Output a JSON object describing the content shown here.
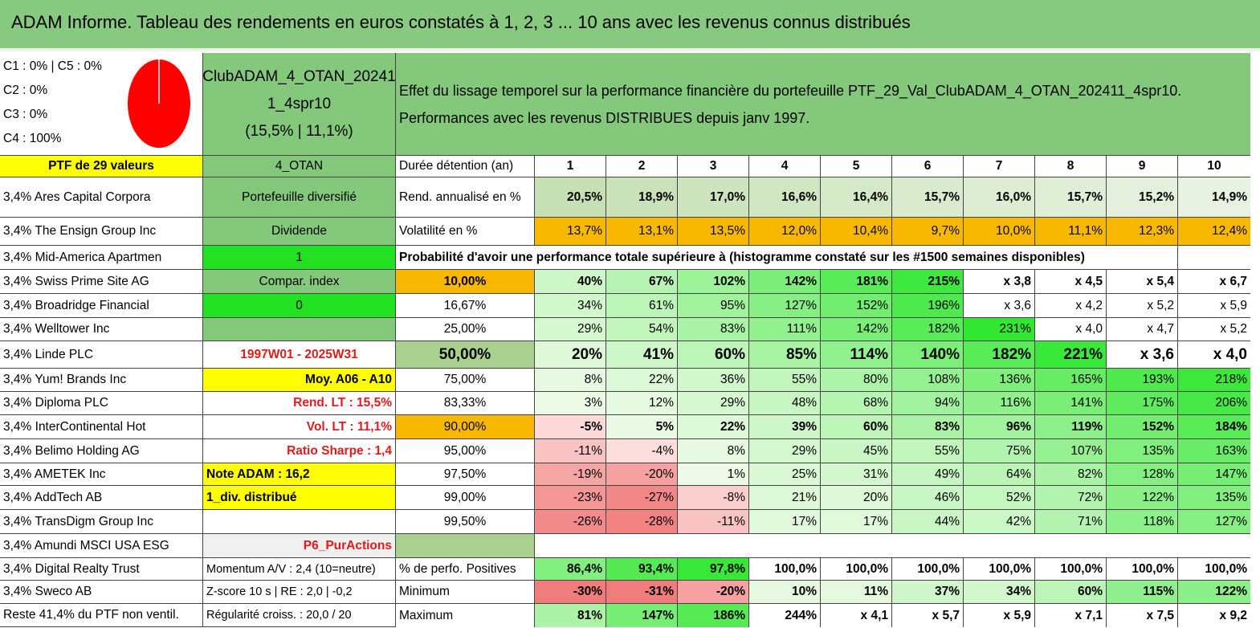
{
  "title": "ADAM Informe. Tableau des rendements en euros constatés à 1, 2, 3 ... 10 ans avec les revenus connus distribués",
  "legend": [
    "C1 : 0% | C5 : 0%",
    "C2 : 0%",
    "C3 : 0%",
    "C4 : 100%"
  ],
  "colors": {
    "header_green": "#86c97f",
    "pie_red": "#ff0000",
    "yellow": "#ffff00",
    "orange": "#f9b800",
    "lime": "#22e022",
    "label_red": "#e01b1b"
  },
  "portfolio": {
    "line1": "ClubADAM_4_OTAN_20241",
    "line2": "1_4spr10",
    "line3": "(15,5% | 11,1%)"
  },
  "effect": {
    "line1": "Effet du lissage temporel sur la performance financière du portefeuille PTF_29_Val_ClubADAM_4_OTAN_202411_4spr10.",
    "line2": "Performances avec les revenus DISTRIBUES depuis janv 1997."
  },
  "holdings_header": "PTF de 29 valeurs",
  "holdings": [
    "3,4% Ares Capital Corpora",
    "3,4% The Ensign Group Inc",
    "3,4% Mid-America Apartmen",
    "3,4% Swiss Prime Site AG",
    "3,4% Broadridge Financial",
    "3,4% Welltower Inc",
    "3,4% Linde PLC",
    "3,4% Yum! Brands Inc",
    "3,4% Diploma PLC",
    "3,4% InterContinental Hot",
    "3,4% Belimo Holding AG",
    "3,4% AMETEK Inc",
    "3,4% AddTech AB",
    "3,4% TransDigm Group Inc",
    "3,4% Amundi MSCI USA ESG",
    "3,4% Digital Realty Trust",
    "3,4% Sweco AB",
    "Reste 41,4% du PTF non ventil."
  ],
  "info": [
    "4_OTAN",
    "Portefeuille diversifié",
    "Dividende",
    "1",
    "Compar. index",
    "0",
    "",
    "1997W01 - 2025W31",
    "Moy. A06 - A10",
    "Rend. LT : 15,5%",
    "Vol. LT : 11,1%",
    "Ratio Sharpe : 1,4",
    "Note ADAM : 16,2",
    "1_div. distribué",
    "",
    "P6_PurActions",
    "Momentum A/V : 2,4 (10=neutre)",
    "Z-score 10 s | RE : 2,0 | -0,2",
    "Régularité croiss. : 20,0 / 20"
  ],
  "years_label": "Durée détention (an)",
  "years": [
    "1",
    "2",
    "3",
    "4",
    "5",
    "6",
    "7",
    "8",
    "9",
    "10"
  ],
  "rend_label": "Rend. annualisé en %",
  "rend": [
    "20,5%",
    "18,9%",
    "17,0%",
    "16,6%",
    "16,4%",
    "15,7%",
    "16,0%",
    "15,7%",
    "15,2%",
    "14,9%"
  ],
  "vol_label": "Volatilité en %",
  "vol": [
    "13,7%",
    "13,1%",
    "13,5%",
    "12,0%",
    "10,4%",
    "9,7%",
    "10,0%",
    "11,1%",
    "12,3%",
    "12,4%"
  ],
  "prob_title": "Probabilité d'avoir une performance totale supérieure à (histogramme constaté sur les #1500 semaines disponibles)",
  "prob_rows": [
    {
      "label": "10,00%",
      "values": [
        "40%",
        "67%",
        "102%",
        "142%",
        "181%",
        "215%",
        "x 3,8",
        "x 4,5",
        "x 5,4",
        "x 6,7"
      ]
    },
    {
      "label": "16,67%",
      "values": [
        "34%",
        "61%",
        "95%",
        "127%",
        "152%",
        "196%",
        "x 3,6",
        "x 4,2",
        "x 5,2",
        "x 5,9"
      ]
    },
    {
      "label": "25,00%",
      "values": [
        "29%",
        "54%",
        "83%",
        "111%",
        "142%",
        "182%",
        "231%",
        "x 4,0",
        "x 4,7",
        "x 5,2"
      ]
    },
    {
      "label": "50,00%",
      "values": [
        "20%",
        "41%",
        "60%",
        "85%",
        "114%",
        "140%",
        "182%",
        "221%",
        "x 3,6",
        "x 4,0"
      ]
    },
    {
      "label": "75,00%",
      "values": [
        "8%",
        "22%",
        "36%",
        "55%",
        "80%",
        "108%",
        "136%",
        "165%",
        "193%",
        "218%"
      ]
    },
    {
      "label": "83,33%",
      "values": [
        "3%",
        "12%",
        "29%",
        "48%",
        "68%",
        "94%",
        "116%",
        "141%",
        "175%",
        "206%"
      ]
    },
    {
      "label": "90,00%",
      "values": [
        "-5%",
        "5%",
        "22%",
        "39%",
        "60%",
        "83%",
        "96%",
        "119%",
        "152%",
        "184%"
      ]
    },
    {
      "label": "95,00%",
      "values": [
        "-11%",
        "-4%",
        "8%",
        "29%",
        "45%",
        "55%",
        "75%",
        "107%",
        "135%",
        "163%"
      ]
    },
    {
      "label": "97,50%",
      "values": [
        "-19%",
        "-20%",
        "1%",
        "25%",
        "31%",
        "49%",
        "64%",
        "82%",
        "128%",
        "147%"
      ]
    },
    {
      "label": "99,00%",
      "values": [
        "-23%",
        "-27%",
        "-8%",
        "21%",
        "20%",
        "46%",
        "52%",
        "72%",
        "122%",
        "135%"
      ]
    },
    {
      "label": "99,50%",
      "values": [
        "-26%",
        "-28%",
        "-11%",
        "17%",
        "17%",
        "44%",
        "42%",
        "71%",
        "118%",
        "127%"
      ]
    }
  ],
  "pos_label": "% de perfo. Positives",
  "pos": [
    "86,4%",
    "93,4%",
    "97,8%",
    "100,0%",
    "100,0%",
    "100,0%",
    "100,0%",
    "100,0%",
    "100,0%",
    "100,0%"
  ],
  "min_label": "Minimum",
  "min": [
    "-30%",
    "-31%",
    "-20%",
    "10%",
    "11%",
    "37%",
    "34%",
    "60%",
    "115%",
    "122%"
  ],
  "max_label": "Maximum",
  "max": [
    "81%",
    "147%",
    "186%",
    "244%",
    "x 4,1",
    "x 5,7",
    "x 5,9",
    "x 7,1",
    "x 7,5",
    "x 9,2"
  ]
}
